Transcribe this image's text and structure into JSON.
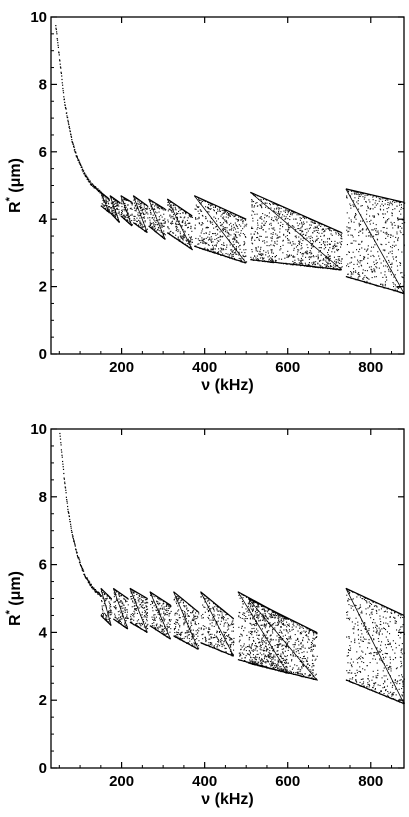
{
  "chart_data": [
    {
      "type": "scatter",
      "title": "",
      "xlabel": "ν (kHz)",
      "ylabel_main": "R",
      "ylabel_sup": "*",
      "ylabel_unit": "(μm)",
      "xlim": [
        30,
        880
      ],
      "ylim": [
        0,
        10
      ],
      "xticks": [
        200,
        400,
        600,
        800
      ],
      "yticks": [
        0,
        2,
        4,
        6,
        8,
        10
      ],
      "grid": false,
      "curve": {
        "x": [
          40,
          50,
          60,
          70,
          80,
          90,
          100,
          110,
          120,
          130,
          140,
          150
        ],
        "y": [
          9.8,
          8.7,
          7.6,
          6.9,
          6.3,
          5.9,
          5.6,
          5.35,
          5.15,
          5.0,
          4.9,
          4.8
        ]
      },
      "bands": [
        {
          "x": [
            150,
            170
          ],
          "top": [
            4.8,
            4.6
          ],
          "bottom": [
            4.4,
            4.2
          ]
        },
        {
          "x": [
            172,
            195
          ],
          "top": [
            4.7,
            4.5
          ],
          "bottom": [
            4.2,
            3.9
          ]
        },
        {
          "x": [
            198,
            225
          ],
          "top": [
            4.7,
            4.5
          ],
          "bottom": [
            4.1,
            3.8
          ]
        },
        {
          "x": [
            228,
            262
          ],
          "top": [
            4.7,
            4.4
          ],
          "bottom": [
            3.9,
            3.6
          ]
        },
        {
          "x": [
            265,
            305
          ],
          "top": [
            4.6,
            4.3
          ],
          "bottom": [
            3.8,
            3.4
          ]
        },
        {
          "x": [
            310,
            370
          ],
          "top": [
            4.6,
            4.1
          ],
          "bottom": [
            3.6,
            3.1
          ]
        },
        {
          "x": [
            375,
            500
          ],
          "top": [
            4.7,
            4.0
          ],
          "bottom": [
            3.2,
            2.7
          ]
        },
        {
          "x": [
            510,
            730
          ],
          "top": [
            4.8,
            3.6
          ],
          "bottom": [
            2.8,
            2.5
          ]
        },
        {
          "x": [
            740,
            880
          ],
          "top": [
            4.9,
            4.5
          ],
          "bottom": [
            2.3,
            1.8
          ]
        }
      ]
    },
    {
      "type": "scatter",
      "title": "",
      "xlabel": "ν (kHz)",
      "ylabel_main": "R",
      "ylabel_sup": "*",
      "ylabel_unit": "(μm)",
      "xlim": [
        30,
        880
      ],
      "ylim": [
        0,
        10
      ],
      "xticks": [
        200,
        400,
        600,
        800
      ],
      "yticks": [
        0,
        2,
        4,
        6,
        8,
        10
      ],
      "grid": false,
      "curve": {
        "x": [
          50,
          60,
          70,
          80,
          90,
          100,
          110,
          120,
          130,
          140,
          150
        ],
        "y": [
          9.9,
          8.6,
          7.6,
          6.9,
          6.4,
          6.0,
          5.7,
          5.5,
          5.3,
          5.2,
          5.1
        ]
      },
      "bands": [
        {
          "x": [
            150,
            175
          ],
          "top": [
            5.3,
            5.0
          ],
          "bottom": [
            4.5,
            4.2
          ]
        },
        {
          "x": [
            180,
            215
          ],
          "top": [
            5.3,
            5.0
          ],
          "bottom": [
            4.4,
            4.1
          ]
        },
        {
          "x": [
            220,
            262
          ],
          "top": [
            5.3,
            5.0
          ],
          "bottom": [
            4.3,
            4.0
          ]
        },
        {
          "x": [
            268,
            318
          ],
          "top": [
            5.2,
            4.8
          ],
          "bottom": [
            4.2,
            3.8
          ]
        },
        {
          "x": [
            325,
            385
          ],
          "top": [
            5.2,
            4.6
          ],
          "bottom": [
            3.9,
            3.5
          ]
        },
        {
          "x": [
            390,
            470
          ],
          "top": [
            5.2,
            4.4
          ],
          "bottom": [
            3.7,
            3.3
          ]
        },
        {
          "x": [
            480,
            600
          ],
          "top": [
            5.2,
            4.4
          ],
          "bottom": [
            3.2,
            2.8
          ]
        },
        {
          "x": [
            505,
            670
          ],
          "top": [
            5.0,
            4.0
          ],
          "bottom": [
            3.1,
            2.6
          ]
        },
        {
          "x": [
            740,
            880
          ],
          "top": [
            5.3,
            4.5
          ],
          "bottom": [
            2.6,
            1.9
          ]
        }
      ]
    }
  ]
}
